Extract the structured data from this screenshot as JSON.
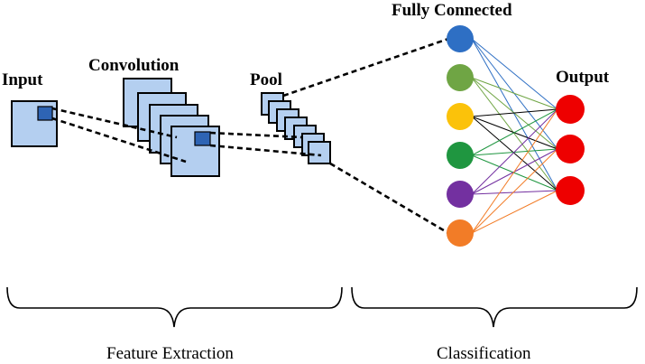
{
  "labels": {
    "input": "Input",
    "convolution": "Convolution",
    "pool": "Pool",
    "fully_connected": "Fully Connected",
    "output": "Output",
    "feature_extraction": "Feature Extraction",
    "classification": "Classification"
  },
  "fc_nodes": [
    {
      "color": "#2e6fc4"
    },
    {
      "color": "#6fa544"
    },
    {
      "color": "#fbc20a"
    },
    {
      "color": "#1f9640"
    },
    {
      "color": "#7330a0"
    },
    {
      "color": "#f27c27"
    }
  ],
  "output_nodes": [
    {
      "color": "#ee0000"
    },
    {
      "color": "#ee0000"
    },
    {
      "color": "#ee0000"
    }
  ],
  "colors": {
    "feature_map_fill": "#b4cff0",
    "kernel_patch": "#2e64b4"
  }
}
